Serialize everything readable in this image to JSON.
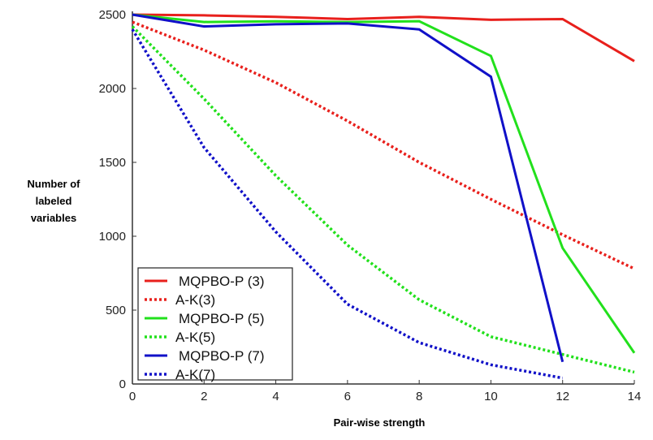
{
  "chart_data": {
    "type": "line",
    "title": "",
    "xlabel": "Pair-wise strength",
    "ylabel": [
      "Number of",
      "labeled",
      "variables"
    ],
    "xlim": [
      0,
      14
    ],
    "ylim": [
      0,
      2500
    ],
    "xticks": [
      0,
      2,
      4,
      6,
      8,
      10,
      12,
      14
    ],
    "yticks": [
      0,
      500,
      1000,
      1500,
      2000,
      2500
    ],
    "grid": false,
    "legend_position": "bottom-left",
    "series": [
      {
        "name": "MQPBO-P (3)",
        "color": "#e8201c",
        "style": "solid",
        "x": [
          0,
          2,
          4,
          6,
          8,
          10,
          12,
          14
        ],
        "y": [
          2500,
          2495,
          2485,
          2470,
          2485,
          2465,
          2470,
          2185
        ]
      },
      {
        "name": "A-K(3)",
        "color": "#e8201c",
        "style": "dotted",
        "x": [
          0,
          2,
          4,
          6,
          8,
          10,
          12,
          14
        ],
        "y": [
          2450,
          2260,
          2040,
          1780,
          1500,
          1250,
          1010,
          780
        ]
      },
      {
        "name": "MQPBO-P (5)",
        "color": "#22e01c",
        "style": "solid",
        "x": [
          0,
          2,
          4,
          6,
          8,
          10,
          12,
          14
        ],
        "y": [
          2500,
          2450,
          2455,
          2450,
          2455,
          2220,
          920,
          210
        ]
      },
      {
        "name": "A-K(5)",
        "color": "#22e01c",
        "style": "dotted",
        "x": [
          0,
          2,
          4,
          6,
          8,
          10,
          12,
          14
        ],
        "y": [
          2420,
          1930,
          1410,
          940,
          570,
          320,
          200,
          80
        ]
      },
      {
        "name": "MQPBO-P (7)",
        "color": "#1010c8",
        "style": "solid",
        "x": [
          0,
          2,
          4,
          6,
          8,
          10,
          12
        ],
        "y": [
          2500,
          2420,
          2435,
          2440,
          2400,
          2080,
          150
        ]
      },
      {
        "name": "A-K(7)",
        "color": "#1010c8",
        "style": "dotted",
        "x": [
          0,
          2,
          4,
          6,
          8,
          10,
          12
        ],
        "y": [
          2400,
          1600,
          1030,
          540,
          280,
          130,
          40
        ]
      }
    ]
  }
}
